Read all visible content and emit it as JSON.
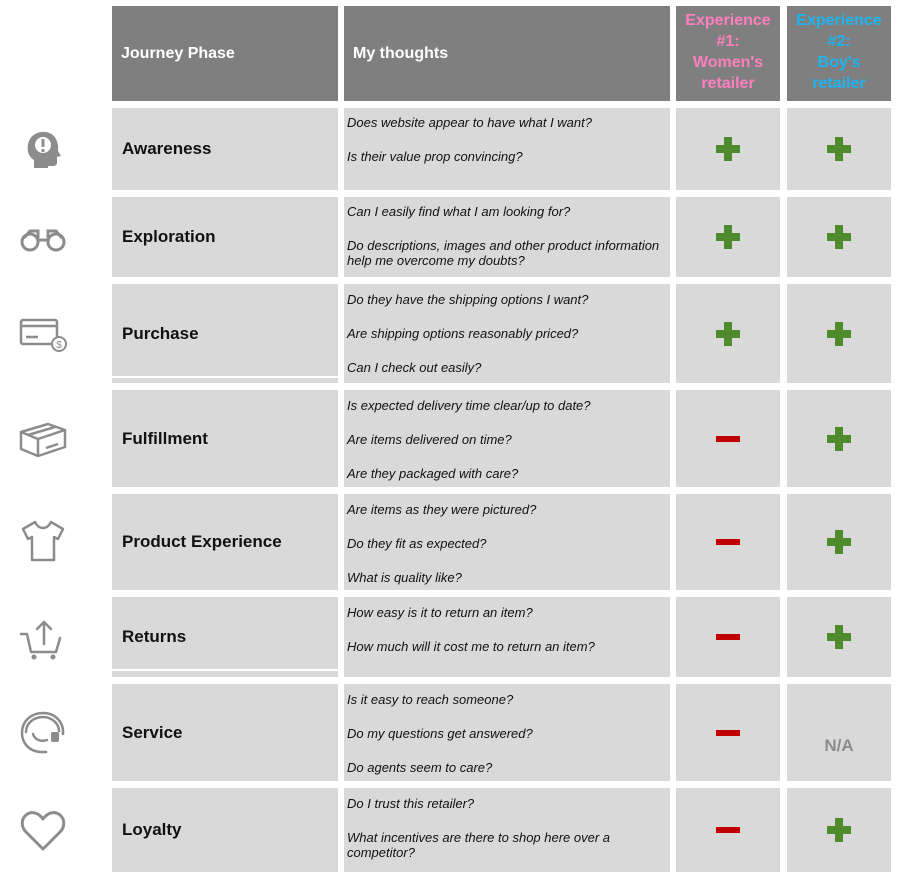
{
  "header": {
    "phase": "Journey Phase",
    "thoughts": "My thoughts",
    "exp1": [
      "Experience",
      "#1:",
      "Women's",
      "retailer"
    ],
    "exp2": [
      "Experience",
      "#2:",
      "Boy's",
      "retailer"
    ],
    "exp1_color": "#ff7fbf",
    "exp2_color": "#1eb4f0"
  },
  "colors": {
    "plus": "#4f8a2d",
    "minus": "#c00000",
    "header_bg": "#7f7f7f",
    "cell_bg": "#d9d9d9"
  },
  "rows": [
    {
      "phase": "Awareness",
      "icon": "head-exclamation-icon",
      "questions": [
        "Does website appear to have what I want?",
        "Is their value prop convincing?"
      ],
      "exp1": "plus",
      "exp2": "plus"
    },
    {
      "phase": "Exploration",
      "icon": "binoculars-icon",
      "questions": [
        "Can I easily find what I am looking for?",
        "Do descriptions, images and other product information help me overcome my doubts?"
      ],
      "exp1": "plus",
      "exp2": "plus"
    },
    {
      "phase": "Purchase",
      "icon": "credit-card-icon",
      "questions": [
        "Do they have the shipping options I want?",
        "Are shipping options reasonably priced?",
        "Can I check out easily?"
      ],
      "exp1": "plus",
      "exp2": "plus"
    },
    {
      "phase": "Fulfillment",
      "icon": "package-icon",
      "questions": [
        "Is expected delivery time clear/up to date?",
        "Are items delivered on time?",
        "Are they packaged with care?"
      ],
      "exp1": "minus",
      "exp2": "plus"
    },
    {
      "phase": "Product Experience",
      "icon": "tshirt-icon",
      "questions": [
        "Are items as they were pictured?",
        "Do they fit as expected?",
        "What is quality like?"
      ],
      "exp1": "minus",
      "exp2": "plus"
    },
    {
      "phase": "Returns",
      "icon": "cart-return-icon",
      "questions": [
        "How easy is it to return an item?",
        "How much will it cost me to return an item?"
      ],
      "exp1": "minus",
      "exp2": "plus"
    },
    {
      "phase": "Service",
      "icon": "headset-icon",
      "questions": [
        "Is it easy to reach someone?",
        "Do my questions get answered?",
        "Do agents seem to care?"
      ],
      "exp1": "minus",
      "exp2": "N/A"
    },
    {
      "phase": "Loyalty",
      "icon": "heart-icon",
      "questions": [
        "Do I trust this retailer?",
        "What incentives are there to shop here over a competitor?"
      ],
      "exp1": "minus",
      "exp2": "plus"
    }
  ]
}
